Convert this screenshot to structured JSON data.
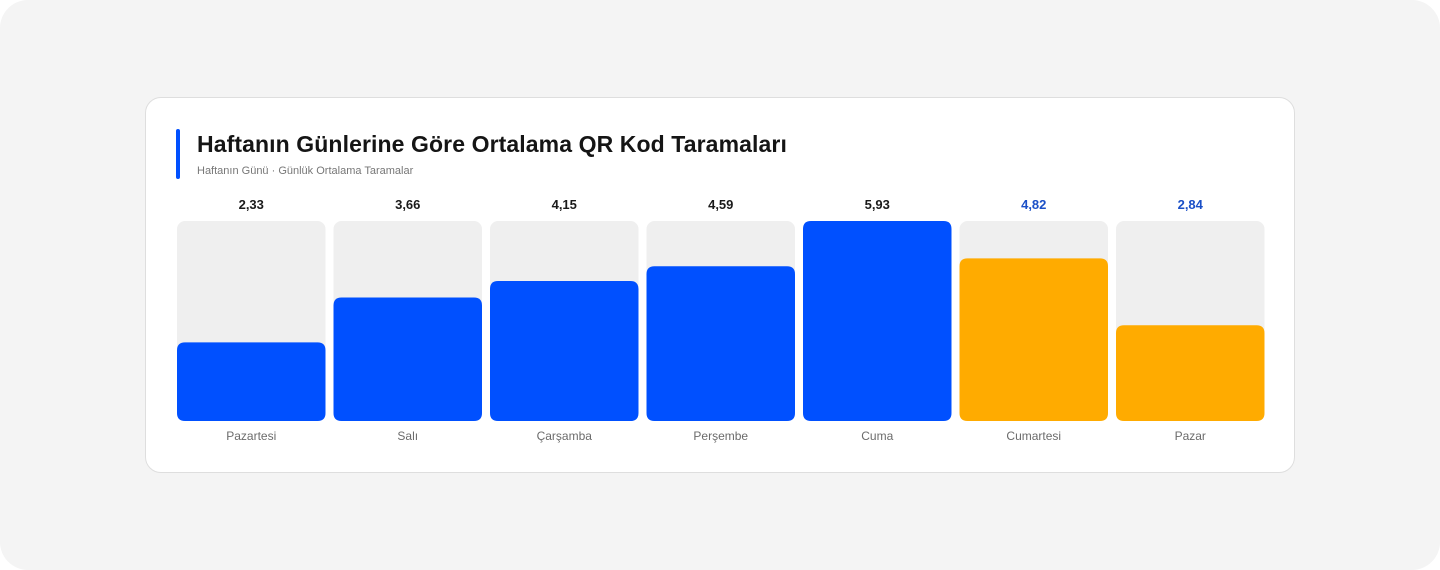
{
  "chart_data": {
    "type": "bar",
    "title": "Haftanın Günlerine Göre Ortalama QR Kod Taramaları",
    "subtitle": "Haftanın Günü · Günlük Ortalama Taramalar",
    "categories": [
      "Pazartesi",
      "Salı",
      "Çarşamba",
      "Perşembe",
      "Cuma",
      "Cumartesi",
      "Pazar"
    ],
    "values": [
      2.33,
      3.66,
      4.15,
      4.59,
      5.93,
      4.82,
      2.84
    ],
    "value_labels": [
      "2,33",
      "3,66",
      "4,15",
      "4,59",
      "5,93",
      "4,82",
      "2,84"
    ],
    "ylim": [
      0,
      5.93
    ],
    "grid": false,
    "bar_colors": [
      "#0050ff",
      "#0050ff",
      "#0050ff",
      "#0050ff",
      "#0050ff",
      "#ffab00",
      "#ffab00"
    ],
    "value_label_colors": [
      "#1a1a1a",
      "#1a1a1a",
      "#1a1a1a",
      "#1a1a1a",
      "#1a1a1a",
      "#1a4fc7",
      "#1a4fc7"
    ]
  },
  "colors": {
    "accent": "#0050ff",
    "track": "#efefef"
  }
}
